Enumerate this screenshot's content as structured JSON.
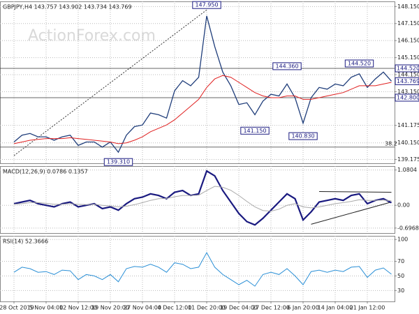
{
  "chart_data": [
    {
      "type": "line",
      "title": "GBPJPY,H4  143.757 143.902 143.734 143.769",
      "watermark": "ActionForex.com",
      "ylim": [
        138.95,
        148.45
      ],
      "yticks": [
        {
          "value": 139.175,
          "label": "139.175"
        },
        {
          "value": 140.15,
          "label": "140.150"
        },
        {
          "value": 141.175,
          "label": "141.175"
        },
        {
          "value": 143.15,
          "label": "143.150"
        },
        {
          "value": 144.15,
          "label": "144.150"
        },
        {
          "value": 145.15,
          "label": "145.150"
        },
        {
          "value": 146.15,
          "label": "146.150"
        },
        {
          "value": 147.15,
          "label": "147.150"
        },
        {
          "value": 148.15,
          "label": "148.150"
        }
      ],
      "grid": true,
      "series": [
        {
          "color": "#1f3d7a",
          "values": [
            140.2,
            140.6,
            140.7,
            140.5,
            140.5,
            140.3,
            140.5,
            140.6,
            140.0,
            140.2,
            140.2,
            139.9,
            140.2,
            139.6,
            140.6,
            141.1,
            141.2,
            141.9,
            141.8,
            141.6,
            143.2,
            143.8,
            143.5,
            144.0,
            147.6,
            145.8,
            144.3,
            143.5,
            142.4,
            142.5,
            141.8,
            142.6,
            143.0,
            142.9,
            143.6,
            142.8,
            141.3,
            142.8,
            143.4,
            143.3,
            143.6,
            143.5,
            144.0,
            144.2,
            143.4,
            143.9,
            144.3,
            143.769
          ]
        },
        {
          "color": "#e02020",
          "values": [
            140.1,
            140.2,
            140.3,
            140.35,
            140.4,
            140.4,
            140.4,
            140.45,
            140.4,
            140.35,
            140.3,
            140.25,
            140.2,
            140.1,
            140.15,
            140.3,
            140.5,
            140.8,
            141.0,
            141.2,
            141.5,
            141.9,
            142.3,
            142.7,
            143.4,
            143.9,
            144.1,
            144.0,
            143.7,
            143.4,
            143.1,
            142.9,
            142.8,
            142.8,
            142.9,
            142.9,
            142.7,
            142.7,
            142.8,
            142.9,
            143.0,
            143.1,
            143.3,
            143.5,
            143.5,
            143.5,
            143.6,
            143.7
          ]
        }
      ],
      "hlines": [
        {
          "value": 144.52,
          "label": "144.520"
        },
        {
          "value": 142.8,
          "label": "142.800"
        }
      ],
      "last_price": {
        "value": 143.769,
        "label": "143.769"
      },
      "fib": {
        "value": 139.9,
        "label": "38.2"
      },
      "trendline": {
        "x": [
          0,
          24
        ],
        "y": [
          139.4,
          147.95
        ]
      },
      "annotations": [
        {
          "label": "147.950",
          "value": 147.95,
          "index": 24
        },
        {
          "label": "144.360",
          "value": 144.36,
          "index": 34
        },
        {
          "label": "144.520",
          "value": 144.52,
          "index": 43
        },
        {
          "label": "141.150",
          "value": 141.15,
          "index": 30
        },
        {
          "label": "140.830",
          "value": 140.83,
          "index": 36
        },
        {
          "label": "139.310",
          "value": 139.31,
          "index": 13
        }
      ]
    },
    {
      "type": "line",
      "title": "MACD(12,26,9) 0.0786 0.1357",
      "ylim": [
        -0.85,
        1.2
      ],
      "yticks": [
        -0.6968,
        {
          "value": 0,
          "label": "0.00"
        },
        1.0804
      ],
      "grid": true,
      "series": [
        {
          "color": "#1a1a80",
          "values": [
            0.05,
            0.1,
            0.15,
            0.05,
            0.0,
            -0.05,
            0.05,
            0.1,
            -0.05,
            0.0,
            0.05,
            -0.1,
            -0.05,
            -0.15,
            0.05,
            0.2,
            0.25,
            0.35,
            0.3,
            0.2,
            0.4,
            0.45,
            0.3,
            0.35,
            1.05,
            0.9,
            0.45,
            0.1,
            -0.25,
            -0.5,
            -0.6,
            -0.4,
            -0.15,
            0.1,
            0.35,
            0.2,
            -0.45,
            -0.2,
            0.1,
            0.15,
            0.2,
            0.15,
            0.3,
            0.35,
            0.05,
            0.15,
            0.2,
            0.0786
          ]
        },
        {
          "color": "#aaaaaa",
          "values": [
            0.03,
            0.05,
            0.08,
            0.08,
            0.06,
            0.03,
            0.03,
            0.05,
            0.03,
            0.02,
            0.03,
            0.0,
            -0.02,
            -0.05,
            -0.03,
            0.02,
            0.08,
            0.15,
            0.2,
            0.21,
            0.26,
            0.3,
            0.3,
            0.31,
            0.45,
            0.58,
            0.55,
            0.46,
            0.3,
            0.12,
            -0.05,
            -0.16,
            -0.18,
            -0.12,
            0.0,
            0.05,
            -0.05,
            -0.08,
            -0.05,
            0.0,
            0.05,
            0.08,
            0.12,
            0.17,
            0.15,
            0.15,
            0.16,
            0.1357
          ]
        }
      ],
      "trendlines": [
        {
          "x": [
            38,
            47
          ],
          "y": [
            0.42,
            0.4
          ]
        },
        {
          "x": [
            37,
            47
          ],
          "y": [
            -0.58,
            0.1
          ]
        }
      ]
    },
    {
      "type": "line",
      "title": "RSI(14) 52.3666",
      "ylim": [
        15,
        105
      ],
      "yticks": [
        30,
        50,
        70,
        100
      ],
      "grid": true,
      "categories": [
        "28 Oct 2019",
        null,
        null,
        null,
        "5 Nov 04:00",
        null,
        null,
        null,
        "12 Nov 12:00",
        null,
        null,
        null,
        "19 Nov 20:00",
        null,
        null,
        null,
        "27 Nov 04:00",
        null,
        null,
        null,
        "4 Dec 12:00",
        null,
        null,
        null,
        "11 Dec 20:00",
        null,
        null,
        null,
        "19 Dec 04:00",
        null,
        null,
        null,
        "27 Dec 12:00",
        null,
        null,
        null,
        "6 Jan 20:00",
        null,
        null,
        null,
        "14 Jan 04:00",
        null,
        null,
        null,
        "21 Jan 12:00",
        null,
        null,
        null
      ],
      "series": [
        {
          "color": "#2a8fd6",
          "values": [
            55,
            62,
            60,
            55,
            56,
            52,
            58,
            57,
            45,
            52,
            50,
            45,
            52,
            42,
            60,
            63,
            62,
            66,
            62,
            55,
            68,
            66,
            60,
            62,
            82,
            62,
            52,
            45,
            38,
            44,
            36,
            52,
            55,
            52,
            60,
            50,
            38,
            56,
            58,
            55,
            58,
            56,
            62,
            63,
            48,
            58,
            61,
            52.3666
          ]
        }
      ]
    }
  ]
}
